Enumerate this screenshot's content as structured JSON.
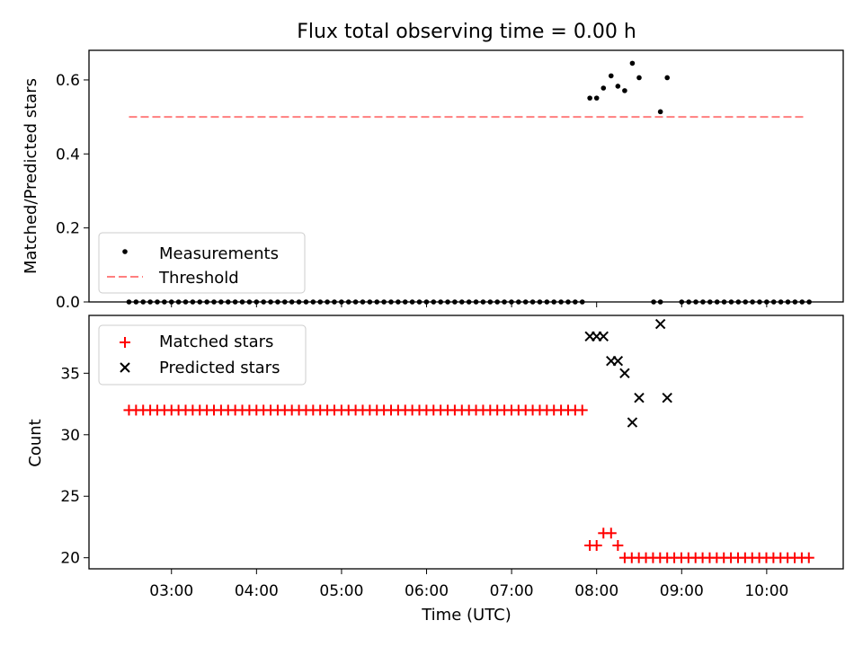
{
  "chart_data": {
    "type": "scatter",
    "title": "Flux total observing time = 0.00 h",
    "xlabel": "Time (UTC)",
    "x_tick_labels": [
      "03:00",
      "04:00",
      "05:00",
      "06:00",
      "07:00",
      "08:00",
      "09:00",
      "10:00"
    ],
    "x_ticks_hours": [
      3,
      4,
      5,
      6,
      7,
      8,
      9,
      10
    ],
    "xlim_hours": [
      2.03,
      10.9
    ],
    "top_panel": {
      "ylabel": "Matched/Predicted stars",
      "ylim": [
        0.0,
        0.68
      ],
      "yticks": [
        0.0,
        0.2,
        0.4,
        0.6
      ],
      "ytick_labels": [
        "0.0",
        "0.2",
        "0.4",
        "0.6"
      ],
      "legend_position": "lower-left",
      "threshold": {
        "name": "Threshold",
        "value": 0.5,
        "x_start": 2.5,
        "x_end": 10.47,
        "color": "#ff7f7f"
      },
      "measurements": {
        "name": "Measurements",
        "color": "#000000",
        "zero_series": {
          "x_start": 2.5,
          "x_end": 7.87,
          "step": 0.0833,
          "value": 0.0
        },
        "zero_late": {
          "x_start": 9.0,
          "x_end": 10.5,
          "step": 0.0833,
          "value": 0.0
        },
        "zero_extra_x": [
          8.67,
          8.75
        ],
        "points": [
          {
            "x": 7.92,
            "y": 0.551
          },
          {
            "x": 8.0,
            "y": 0.551
          },
          {
            "x": 8.08,
            "y": 0.578
          },
          {
            "x": 8.17,
            "y": 0.611
          },
          {
            "x": 8.25,
            "y": 0.583
          },
          {
            "x": 8.33,
            "y": 0.571
          },
          {
            "x": 8.42,
            "y": 0.645
          },
          {
            "x": 8.5,
            "y": 0.606
          },
          {
            "x": 8.75,
            "y": 0.514
          },
          {
            "x": 8.83,
            "y": 0.606
          }
        ]
      }
    },
    "bottom_panel": {
      "ylabel": "Count",
      "ylim": [
        19.1,
        39.7
      ],
      "yticks": [
        20,
        25,
        30,
        35
      ],
      "ytick_labels": [
        "20",
        "25",
        "30",
        "35"
      ],
      "legend_position": "upper-left",
      "matched": {
        "name": "Matched stars",
        "color": "#ff0000",
        "early": {
          "x_start": 2.5,
          "x_end": 7.83,
          "step": 0.0833,
          "value": 32
        },
        "late": {
          "x_start": 8.33,
          "x_end": 10.5,
          "step": 0.0833,
          "value": 20
        },
        "points": [
          {
            "x": 7.92,
            "y": 21
          },
          {
            "x": 8.0,
            "y": 21
          },
          {
            "x": 8.08,
            "y": 22
          },
          {
            "x": 8.17,
            "y": 22
          },
          {
            "x": 8.25,
            "y": 21
          }
        ]
      },
      "predicted": {
        "name": "Predicted stars",
        "color": "#000000",
        "points": [
          {
            "x": 7.92,
            "y": 38
          },
          {
            "x": 8.0,
            "y": 38
          },
          {
            "x": 8.08,
            "y": 38
          },
          {
            "x": 8.17,
            "y": 36
          },
          {
            "x": 8.25,
            "y": 36
          },
          {
            "x": 8.33,
            "y": 35
          },
          {
            "x": 8.42,
            "y": 31
          },
          {
            "x": 8.5,
            "y": 33
          },
          {
            "x": 8.75,
            "y": 39
          },
          {
            "x": 8.83,
            "y": 33
          }
        ]
      }
    }
  }
}
